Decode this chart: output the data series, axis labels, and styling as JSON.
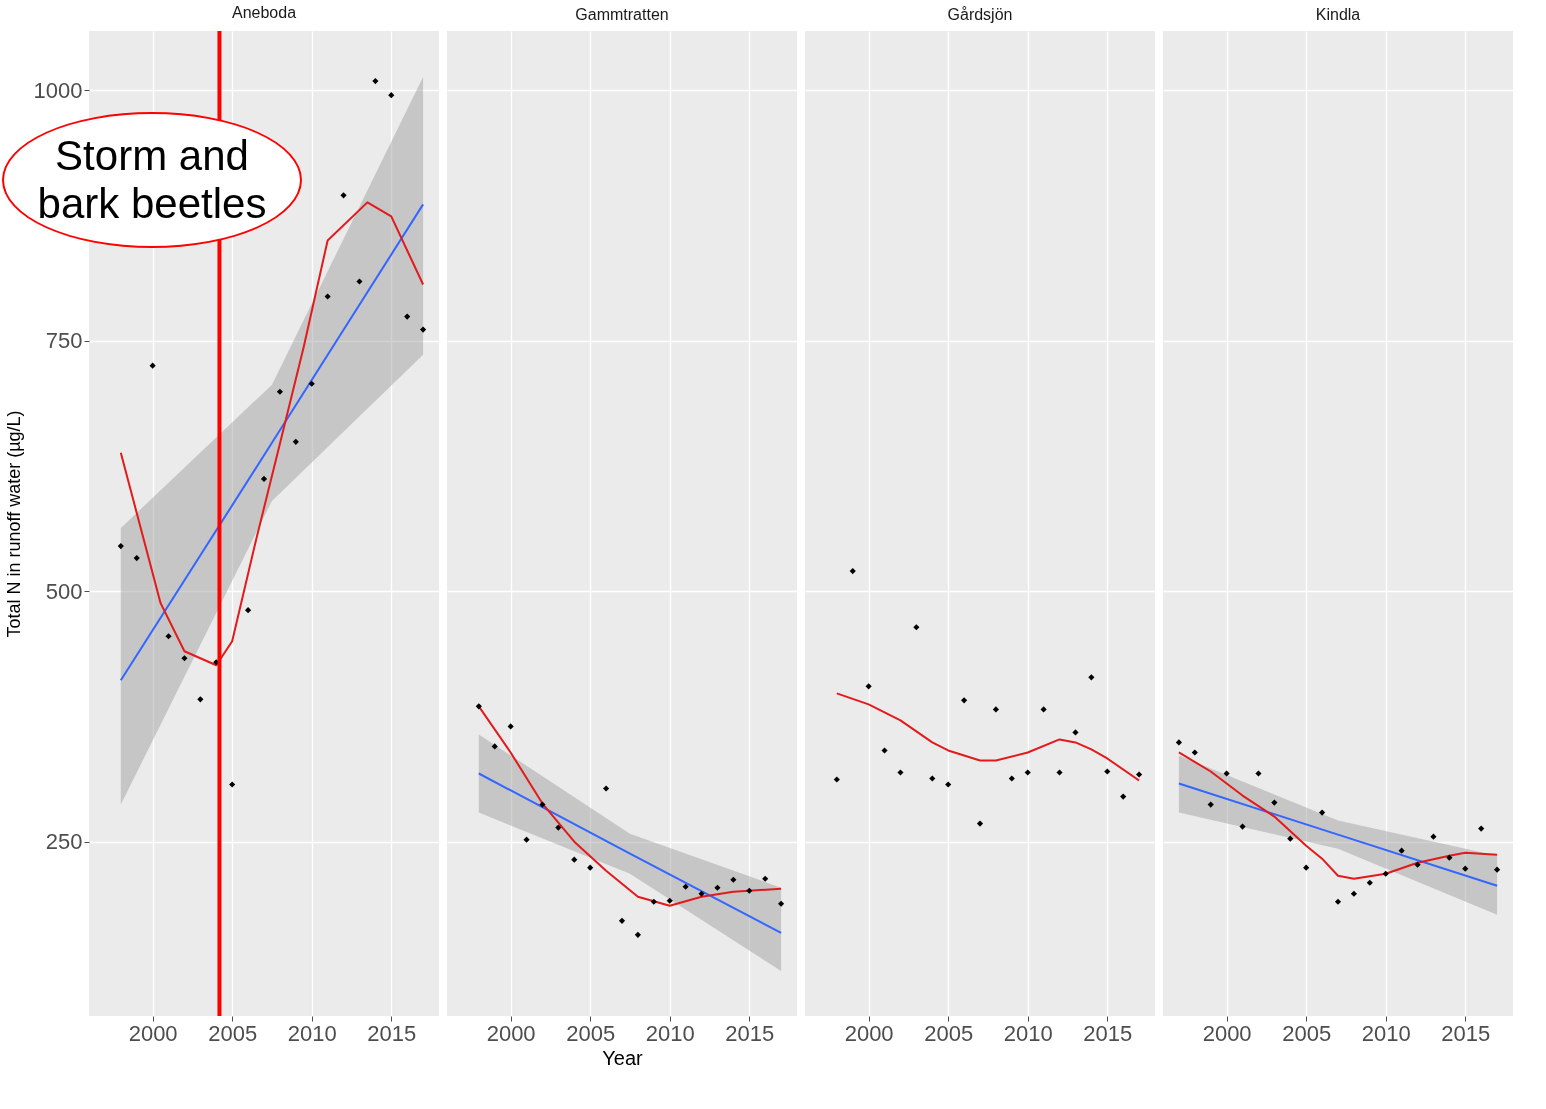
{
  "chart_data": [
    {
      "type": "scatter",
      "title": "Aneboda",
      "ylabel": "Total N in runoff water (µg/L)",
      "xlim": [
        1996,
        2018
      ],
      "xticks": [
        2000,
        2005,
        2010,
        2015
      ],
      "ylim": [
        76,
        1059
      ],
      "yticks": [
        250,
        500,
        750,
        1000
      ],
      "grid": true,
      "ref_lines": [
        {
          "axis": "x",
          "value": 2004.2,
          "label": "Storm and bark beetles",
          "color": "#ff0000"
        }
      ],
      "series": [
        {
          "type": "line",
          "color": "#3366ff",
          "x": [
            1998,
            2007.5,
            2017
          ],
          "values": [
            411,
            648,
            886
          ],
          "lower": [
            287,
            590,
            736
          ],
          "upper": [
            563,
            706,
            1013
          ]
        },
        {
          "type": "line",
          "color": "#e31a1c",
          "x": [
            1998,
            2000.5,
            2002,
            2004,
            2005,
            2006.5,
            2008,
            2009.5,
            2011,
            2013.5,
            2015,
            2017
          ],
          "values": [
            638,
            488,
            440,
            426,
            450,
            551,
            647,
            744,
            850,
            888,
            874,
            806
          ]
        },
        {
          "type": "scatter",
          "marker": "diamond",
          "color": "#000000",
          "x": [
            1998,
            1999,
            2000,
            2001,
            2002,
            2003,
            2004,
            2005,
            2006,
            2007,
            2008,
            2009,
            2010,
            2011,
            2012,
            2013,
            2014,
            2015,
            2016,
            2017
          ],
          "values": [
            545,
            533,
            725,
            455,
            433,
            392,
            429,
            307,
            481,
            612,
            699,
            649,
            707,
            794,
            895,
            809,
            1009,
            995,
            774,
            761
          ]
        }
      ]
    },
    {
      "type": "scatter",
      "title": "Gammtratten",
      "xlabel": "Year",
      "xlim": [
        1996,
        2018
      ],
      "xticks": [
        2000,
        2005,
        2010,
        2015
      ],
      "ylim": [
        76,
        1059
      ],
      "yticks": [
        250,
        500,
        750,
        1000
      ],
      "grid": true,
      "tick_labels": "x",
      "series": [
        {
          "type": "line",
          "color": "#3366ff",
          "x": [
            1998,
            2007.5,
            2017
          ],
          "values": [
            318,
            238,
            159
          ],
          "lower": [
            279,
            218,
            121
          ],
          "upper": [
            357,
            258,
            204
          ]
        },
        {
          "type": "line",
          "color": "#e31a1c",
          "x": [
            1998,
            2000,
            2002,
            2004,
            2006,
            2008,
            2010,
            2012,
            2014,
            2017
          ],
          "values": [
            385,
            339,
            288,
            250,
            221,
            195,
            186,
            195,
            200,
            203
          ]
        },
        {
          "type": "scatter",
          "marker": "diamond",
          "color": "#000000",
          "x": [
            1998,
            1999,
            2000,
            2001,
            2002,
            2003,
            2004,
            2005,
            2006,
            2007,
            2008,
            2009,
            2010,
            2011,
            2012,
            2013,
            2014,
            2015,
            2016,
            2017
          ],
          "values": [
            385,
            345,
            365,
            252,
            287,
            264,
            232,
            224,
            303,
            171,
            157,
            190,
            191,
            205,
            198,
            204,
            212,
            201,
            213,
            188
          ]
        }
      ]
    },
    {
      "type": "scatter",
      "title": "Gårdsjön",
      "xlim": [
        1996,
        2018
      ],
      "xticks": [
        2000,
        2005,
        2010,
        2015
      ],
      "ylim": [
        76,
        1059
      ],
      "yticks": [
        250,
        500,
        750,
        1000
      ],
      "grid": true,
      "tick_labels": "x",
      "series": [
        {
          "type": "line",
          "color": "#e31a1c",
          "x": [
            1998,
            2000,
            2002,
            2004,
            2005,
            2007,
            2008,
            2010,
            2012,
            2013,
            2014,
            2015,
            2017
          ],
          "values": [
            398,
            387,
            371,
            349,
            341,
            331,
            331,
            339,
            352,
            349,
            342,
            333,
            311
          ]
        },
        {
          "type": "scatter",
          "marker": "diamond",
          "color": "#000000",
          "x": [
            1998,
            1999,
            2000,
            2001,
            2002,
            2003,
            2004,
            2005,
            2006,
            2007,
            2008,
            2009,
            2010,
            2011,
            2012,
            2013,
            2014,
            2015,
            2016,
            2017
          ],
          "values": [
            312,
            520,
            405,
            341,
            319,
            464,
            313,
            307,
            391,
            268,
            382,
            313,
            319,
            382,
            319,
            359,
            414,
            320,
            295,
            317
          ]
        }
      ]
    },
    {
      "type": "scatter",
      "title": "Kindla",
      "xlim": [
        1996,
        2018
      ],
      "xticks": [
        2000,
        2005,
        2010,
        2015
      ],
      "ylim": [
        76,
        1059
      ],
      "yticks": [
        250,
        500,
        750,
        1000
      ],
      "grid": true,
      "tick_labels": "x",
      "series": [
        {
          "type": "line",
          "color": "#3366ff",
          "x": [
            1997,
            2007,
            2017
          ],
          "values": [
            308,
            257,
            206
          ],
          "lower": [
            279,
            243,
            177
          ],
          "upper": [
            336,
            271,
            236
          ]
        },
        {
          "type": "line",
          "color": "#e31a1c",
          "x": [
            1997,
            1999,
            2001,
            2003,
            2005,
            2006,
            2007,
            2008,
            2010,
            2012,
            2014,
            2015,
            2017
          ],
          "values": [
            339,
            320,
            296,
            275,
            246,
            233,
            216,
            213,
            218,
            229,
            236,
            239,
            237
          ]
        },
        {
          "type": "scatter",
          "marker": "diamond",
          "color": "#000000",
          "x": [
            1997,
            1998,
            1999,
            2000,
            2001,
            2002,
            2003,
            2004,
            2005,
            2006,
            2007,
            2008,
            2009,
            2010,
            2011,
            2012,
            2013,
            2014,
            2015,
            2016,
            2017
          ],
          "values": [
            349,
            339,
            287,
            318,
            265,
            318,
            289,
            253,
            224,
            279,
            190,
            198,
            209,
            218,
            241,
            227,
            255,
            234,
            223,
            263,
            222
          ]
        }
      ]
    }
  ]
}
